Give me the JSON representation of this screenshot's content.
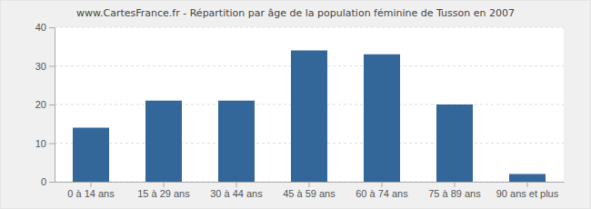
{
  "chart_data": {
    "type": "bar",
    "title": "www.CartesFrance.fr - Répartition par âge de la population féminine de Tusson en 2007",
    "categories": [
      "0 à 14 ans",
      "15 à 29 ans",
      "30 à 44 ans",
      "45 à 59 ans",
      "60 à 74 ans",
      "75 à 89 ans",
      "90 ans et plus"
    ],
    "values": [
      14,
      21,
      21,
      34,
      33,
      20,
      2
    ],
    "color": "#336699",
    "ylim": [
      0,
      40
    ],
    "yticks": [
      0,
      10,
      20,
      30,
      40
    ],
    "grid": true
  }
}
